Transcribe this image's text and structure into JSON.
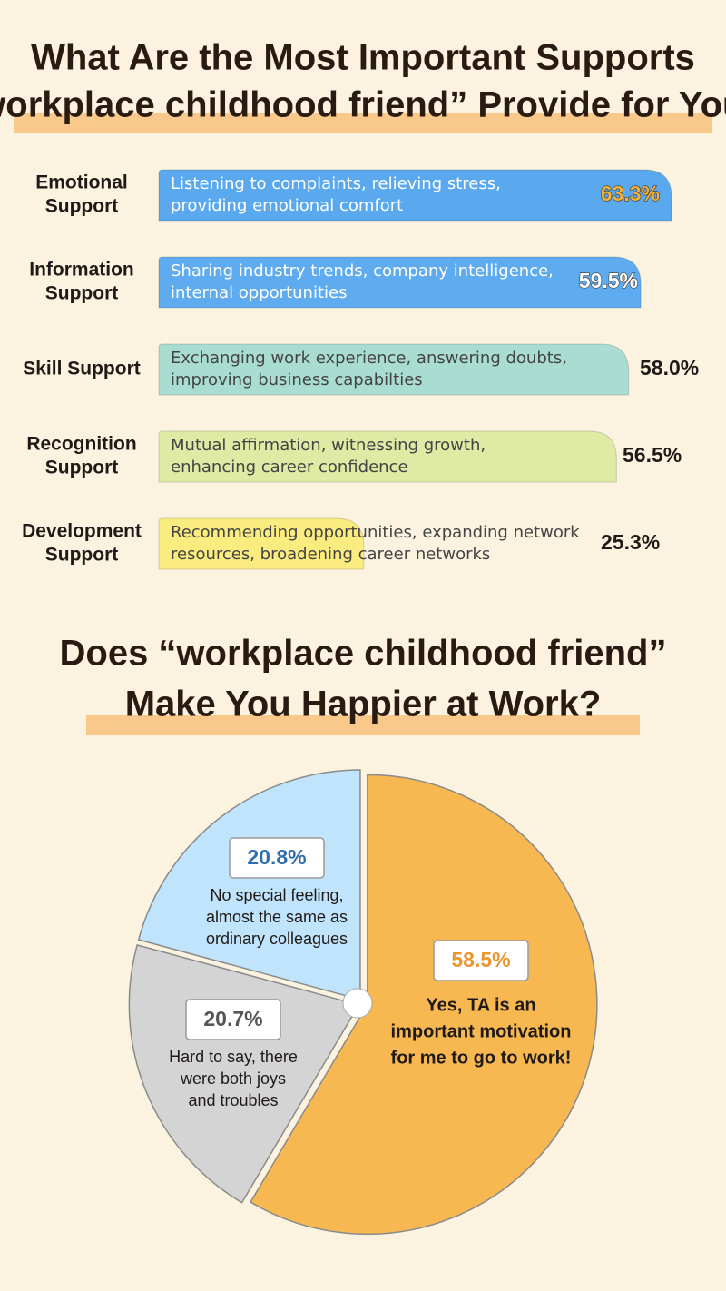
{
  "chart_data": [
    {
      "type": "bar",
      "title": [
        "What Are the Most Important Supports",
        "“workplace childhood friend” Provide for You?"
      ],
      "categories": [
        [
          "Emotional",
          "Support"
        ],
        [
          "Information",
          "Support"
        ],
        [
          "Skill Support"
        ],
        [
          "Recognition",
          "Support"
        ],
        [
          "Development",
          "Support"
        ]
      ],
      "descriptions": [
        [
          "Listening to complaints, relieving stress,",
          "providing emotional comfort"
        ],
        [
          "Sharing industry trends, company intelligence,",
          "internal opportunities"
        ],
        [
          "Exchanging work experience, answering doubts,",
          "improving business capabilties"
        ],
        [
          "Mutual affirmation, witnessing growth,",
          "enhancing career confidence"
        ],
        [
          "Recommending opportunities, expanding network",
          "resources, broadening career networks"
        ]
      ],
      "values": [
        63.3,
        59.5,
        58.0,
        56.5,
        25.3
      ],
      "value_labels": [
        "63.3%",
        "59.5%",
        "58.0%",
        "56.5%",
        "25.3%"
      ],
      "colors": [
        "#5aa8ee",
        "#5fabef",
        "#a9ddd1",
        "#dfeaa4",
        "#fbec80"
      ],
      "description_colors": [
        "#ffffff",
        "#ffffff",
        "#444444",
        "#444444",
        "#444444"
      ],
      "label_colors": [
        "#f2b03a",
        "#ffffff",
        "#1f1a17",
        "#1f1a17",
        "#1f1a17"
      ]
    },
    {
      "type": "pie",
      "title": [
        "Does “workplace childhood friend”",
        "Make You Happier at Work?"
      ],
      "values": [
        58.5,
        20.7,
        20.8
      ],
      "value_labels": [
        "58.5%",
        "20.7%",
        "20.8%"
      ],
      "labels": [
        [
          "Yes, TA is an",
          "important motivation",
          "for me to go to work!"
        ],
        [
          "Hard to say, there",
          "were both joys",
          "and troubles"
        ],
        [
          "No special feeling,",
          "almost the same as",
          "ordinary colleagues"
        ]
      ],
      "colors": [
        "#f7b852",
        "#d4d4d4",
        "#bfe4fb"
      ],
      "label_colors": [
        "#e9962f",
        "#555555",
        "#2f6db0"
      ]
    }
  ]
}
